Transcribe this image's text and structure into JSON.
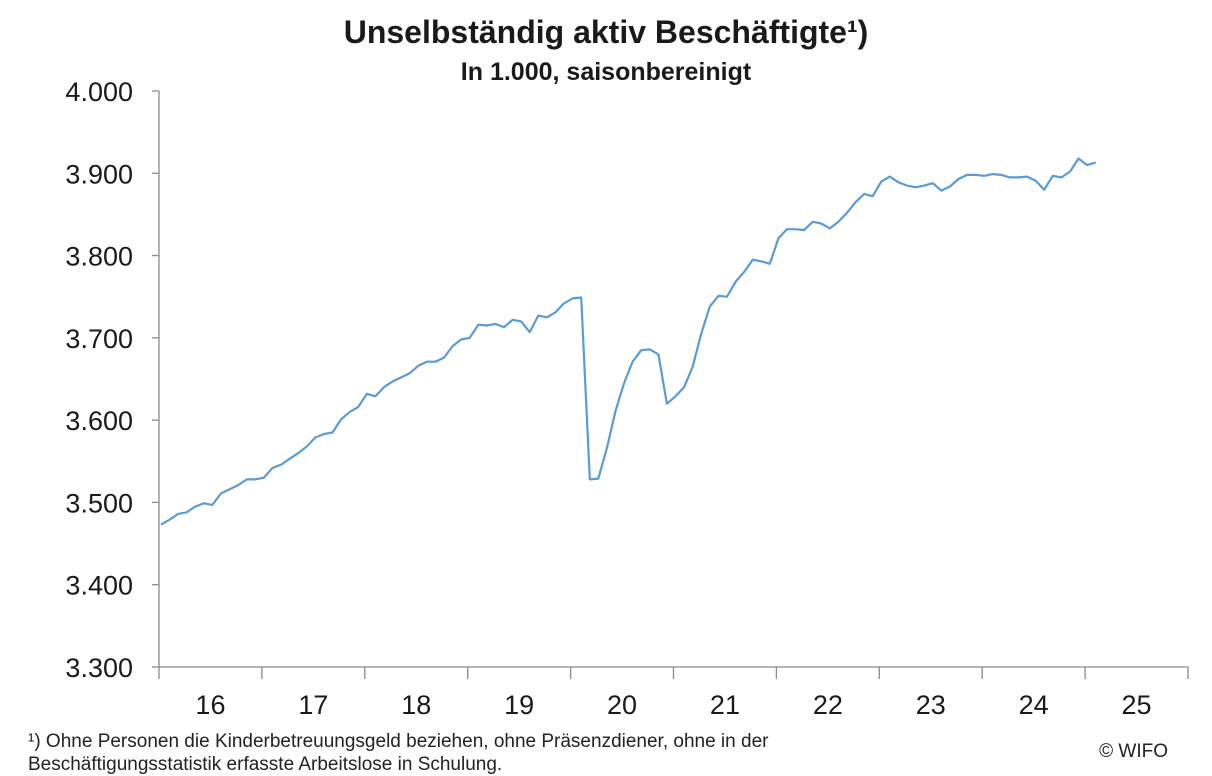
{
  "chart_data": {
    "type": "line",
    "title": "Unselbständig aktiv Beschäftigte¹)",
    "subtitle": "In 1.000, saisonbereinigt",
    "xlabel": "",
    "ylabel": "",
    "ylim": [
      3300,
      4000
    ],
    "y_ticks": [
      3300,
      3400,
      3500,
      3600,
      3700,
      3800,
      3900,
      4000
    ],
    "y_tick_labels": [
      "3.300",
      "3.400",
      "3.500",
      "3.600",
      "3.700",
      "3.800",
      "3.900",
      "4.000"
    ],
    "x_tick_labels": [
      "16",
      "17",
      "18",
      "19",
      "20",
      "21",
      "22",
      "23",
      "24",
      "25"
    ],
    "grid": false,
    "line_color": "#5b9bd5",
    "series": [
      {
        "values": [
          3473,
          3479,
          3486,
          3488,
          3495,
          3499,
          3497,
          3511,
          3516,
          3521,
          3528,
          3528,
          3530,
          3542,
          3546,
          3553,
          3560,
          3568,
          3579,
          3583,
          3585,
          3601,
          3610,
          3616,
          3632,
          3629,
          3640,
          3647,
          3652,
          3657,
          3666,
          3671,
          3671,
          3676,
          3690,
          3698,
          3700,
          3716,
          3715,
          3717,
          3713,
          3722,
          3720,
          3707,
          3727,
          3725,
          3731,
          3742,
          3748,
          3749,
          3528,
          3529,
          3566,
          3611,
          3645,
          3671,
          3685,
          3686,
          3680,
          3620,
          3629,
          3640,
          3665,
          3705,
          3738,
          3751,
          3750,
          3768,
          3780,
          3795,
          3793,
          3790,
          3821,
          3832,
          3832,
          3831,
          3841,
          3839,
          3833,
          3841,
          3852,
          3865,
          3875,
          3872,
          3890,
          3896,
          3889,
          3885,
          3883,
          3885,
          3888,
          3879,
          3884,
          3893,
          3898,
          3898,
          3897,
          3899,
          3898,
          3895,
          3895,
          3896,
          3891,
          3880,
          3897,
          3895,
          3902,
          3918,
          3910,
          3913
        ]
      }
    ]
  },
  "footnote": "¹) Ohne Personen die Kinderbetreuungsgeld beziehen, ohne Präsenzdiener, ohne in der\nBeschäftigungsstatistik erfasste Arbeitslose in Schulung.",
  "copyright": "© WIFO"
}
